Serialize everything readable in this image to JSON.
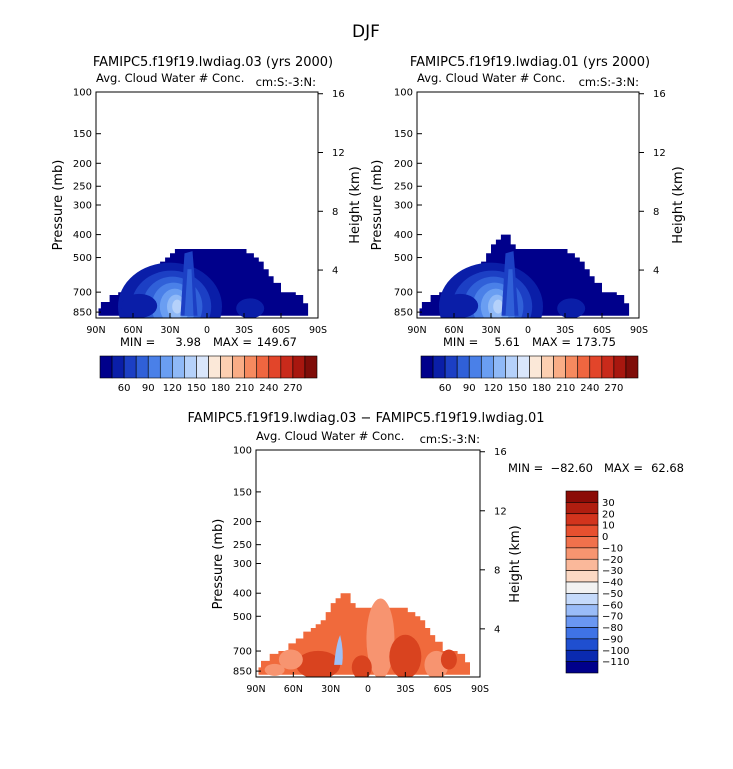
{
  "page_title": "DJF",
  "colors": {
    "main_palette": [
      "#00008b",
      "#0a1ea8",
      "#1c3fc4",
      "#3060d8",
      "#4a80e8",
      "#6a9ef2",
      "#8fb9f7",
      "#b5d1fa",
      "#d9e6fb",
      "#fbe8d8",
      "#fccfb1",
      "#f9ad86",
      "#f68a5f",
      "#ef6640",
      "#e2452a",
      "#c92a1b",
      "#a8170f",
      "#7f0d09"
    ],
    "diff_palette": [
      "#00008b",
      "#0a2ab0",
      "#1f4fd0",
      "#3f73e6",
      "#6a97f2",
      "#9abcf8",
      "#c5dafb",
      "#f2f2f2",
      "#fcd9c4",
      "#fab89a",
      "#f79570",
      "#f1714c",
      "#e7502f",
      "#d2341d",
      "#b01e10",
      "#8b0c07"
    ],
    "diff_field_base": "#f06a3c",
    "diff_field_light": "#f79470",
    "diff_field_dark": "#d9431f",
    "diff_field_blue": "#9ec0f6"
  },
  "chart_data": [
    {
      "type": "heatmap",
      "panel": "top-left",
      "title": "FAMIPC5.f19f19.lwdiag.03 (yrs 2000)",
      "subtitle": "Avg. Cloud Water # Conc.",
      "units_label": "cm:S:-3:N:",
      "xlabel": "",
      "ylabel": "Pressure (mb)",
      "ylabel_right": "Height (km)",
      "x_ticks": [
        "90N",
        "60N",
        "30N",
        "0",
        "30S",
        "60S",
        "90S"
      ],
      "y_ticks": [
        "100",
        "150",
        "200",
        "250",
        "300",
        "400",
        "500",
        "700",
        "850"
      ],
      "y_ticks_right": [
        "16",
        "12",
        "8",
        "4"
      ],
      "stats": {
        "min_label": "MIN =",
        "min": "3.98",
        "max_label": "MAX =",
        "max": "149.67"
      },
      "colorbar_labels": [
        "60",
        "90",
        "120",
        "150",
        "180",
        "210",
        "240",
        "270"
      ],
      "field_extent": {
        "lat": [
          "90N",
          "82S"
        ],
        "pressure_mb": [
          460,
          880
        ]
      }
    },
    {
      "type": "heatmap",
      "panel": "top-right",
      "title": "FAMIPC5.f19f19.lwdiag.01 (yrs 2000)",
      "subtitle": "Avg. Cloud Water # Conc.",
      "units_label": "cm:S:-3:N:",
      "xlabel": "",
      "ylabel": "Pressure (mb)",
      "ylabel_right": "Height (km)",
      "x_ticks": [
        "90N",
        "60N",
        "30N",
        "0",
        "30S",
        "60S",
        "90S"
      ],
      "y_ticks": [
        "100",
        "150",
        "200",
        "250",
        "300",
        "400",
        "500",
        "700",
        "850"
      ],
      "y_ticks_right": [
        "16",
        "12",
        "8",
        "4"
      ],
      "stats": {
        "min_label": "MIN =",
        "min": "5.61",
        "max_label": "MAX =",
        "max": "173.75"
      },
      "colorbar_labels": [
        "60",
        "90",
        "120",
        "150",
        "180",
        "210",
        "240",
        "270"
      ],
      "field_extent": {
        "lat": [
          "90N",
          "82S"
        ],
        "pressure_mb": [
          400,
          880
        ]
      }
    },
    {
      "type": "heatmap",
      "panel": "bottom-difference",
      "title": "FAMIPC5.f19f19.lwdiag.03 − FAMIPC5.f19f19.lwdiag.01",
      "subtitle": "Avg. Cloud Water # Conc.",
      "units_label": "cm:S:-3:N:",
      "xlabel": "",
      "ylabel": "Pressure (mb)",
      "ylabel_right": "Height (km)",
      "x_ticks": [
        "90N",
        "60N",
        "30N",
        "0",
        "30S",
        "60S",
        "90S"
      ],
      "y_ticks": [
        "100",
        "150",
        "200",
        "250",
        "300",
        "400",
        "500",
        "700",
        "850"
      ],
      "y_ticks_right": [
        "16",
        "12",
        "8",
        "4"
      ],
      "stats": {
        "min_label": "MIN =",
        "min": "−82.60",
        "max_label": "MAX =",
        "max": "62.68"
      },
      "colorbar_labels": [
        "30",
        "20",
        "10",
        "0",
        "−10",
        "−20",
        "−30",
        "−40",
        "−50",
        "−60",
        "−70",
        "−80",
        "−90",
        "−100",
        "−110"
      ],
      "field_extent": {
        "lat": [
          "90N",
          "82S"
        ],
        "pressure_mb": [
          460,
          880
        ]
      }
    }
  ]
}
